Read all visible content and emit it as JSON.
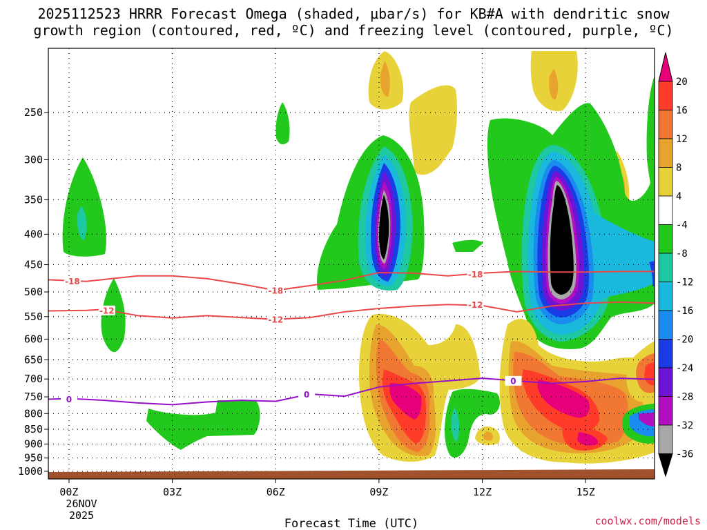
{
  "chart_data": {
    "type": "heatmap",
    "title_line1": "2025112523 HRRR Forecast Omega (shaded, µbar/s) for KB#A with dendritic snow",
    "title_line2": "growth region (contoured, red, ºC) and freezing level (contoured, purple, ºC)",
    "xlabel": "Forecast Time (UTC)",
    "x_ticks": [
      {
        "hour": 0,
        "label": "00Z"
      },
      {
        "hour": 3,
        "label": "03Z"
      },
      {
        "hour": 6,
        "label": "06Z"
      },
      {
        "hour": 9,
        "label": "09Z"
      },
      {
        "hour": 12,
        "label": "12Z"
      },
      {
        "hour": 15,
        "label": "15Z"
      }
    ],
    "x_date_line1": "26NOV",
    "x_date_line2": "2025",
    "xlim": [
      -0.6,
      17.0
    ],
    "ylim_hpa": [
      195,
      1030
    ],
    "y_ticks": [
      250,
      300,
      350,
      400,
      450,
      500,
      550,
      600,
      650,
      700,
      750,
      800,
      850,
      900,
      950,
      1000
    ],
    "colorbar": {
      "labels": [
        "20",
        "16",
        "12",
        "8",
        "4",
        "-4",
        "-8",
        "-12",
        "-16",
        "-20",
        "-24",
        "-28",
        "-32",
        "-36"
      ],
      "colors": [
        "#e8007a",
        "#ff3c2a",
        "#f07832",
        "#e8a22e",
        "#e8d23a",
        "#ffffff",
        "#22c81c",
        "#1ec8a0",
        "#1ab8dc",
        "#1a8cf0",
        "#1a3ce6",
        "#6e14d6",
        "#b010c0",
        "#a8a8a8",
        "#000000"
      ]
    },
    "omega_features": [
      {
        "hour": 0.0,
        "hpa": 390,
        "value": -8,
        "peak": -12
      },
      {
        "hour": 0.6,
        "hpa": 570,
        "value": -8
      },
      {
        "hour": 3.0,
        "hpa": 860,
        "value": -8
      },
      {
        "hour": 5.2,
        "hpa": 830,
        "value": -8
      },
      {
        "hour": 5.9,
        "hpa": 275,
        "value": -8
      },
      {
        "hour": 9.0,
        "hpa": 410,
        "value": -32,
        "peak": -36
      },
      {
        "hour": 9.0,
        "hpa": 230,
        "value": 4,
        "peak": 8
      },
      {
        "hour": 10.0,
        "hpa": 300,
        "value": 4
      },
      {
        "hour": 9.6,
        "hpa": 800,
        "value": 12,
        "peak": 20
      },
      {
        "hour": 11.5,
        "hpa": 830,
        "value": -8,
        "peak": -16
      },
      {
        "hour": 12.0,
        "hpa": 890,
        "value": 4,
        "peak": 16
      },
      {
        "hour": 14.0,
        "hpa": 430,
        "value": -32,
        "peak": -36
      },
      {
        "hour": 13.8,
        "hpa": 220,
        "value": 4,
        "peak": 8
      },
      {
        "hour": 16.0,
        "hpa": 350,
        "value": 4,
        "peak": 8
      },
      {
        "hour": 14.3,
        "hpa": 770,
        "value": 12,
        "peak": 20
      },
      {
        "hour": 15.0,
        "hpa": 910,
        "value": 16,
        "peak": 20
      },
      {
        "hour": 16.8,
        "hpa": 830,
        "value": -16,
        "peak": -28
      },
      {
        "hour": 16.8,
        "hpa": 690,
        "value": 8,
        "peak": 16
      }
    ],
    "contours": [
      {
        "name": "dgz-minus18",
        "label": "-18",
        "color": "#e84848",
        "points": [
          [
            -0.6,
            477
          ],
          [
            0.5,
            480
          ],
          [
            2,
            470
          ],
          [
            3,
            470
          ],
          [
            4,
            475
          ],
          [
            5,
            485
          ],
          [
            6,
            497
          ],
          [
            7,
            488
          ],
          [
            8,
            478
          ],
          [
            9,
            464
          ],
          [
            10,
            465
          ],
          [
            11,
            470
          ],
          [
            12,
            465
          ],
          [
            13,
            462
          ],
          [
            14,
            463
          ],
          [
            15,
            463
          ],
          [
            16,
            462
          ],
          [
            17,
            462
          ]
        ],
        "label_positions": [
          [
            0.1,
            480
          ],
          [
            6,
            497
          ],
          [
            11.8,
            467
          ]
        ]
      },
      {
        "name": "dgz-minus12",
        "label": "-12",
        "color": "#e84848",
        "points": [
          [
            -0.6,
            538
          ],
          [
            0.5,
            537
          ],
          [
            1,
            535
          ],
          [
            2,
            548
          ],
          [
            3,
            553
          ],
          [
            4,
            548
          ],
          [
            5,
            552
          ],
          [
            6,
            556
          ],
          [
            7,
            552
          ],
          [
            8,
            540
          ],
          [
            9,
            533
          ],
          [
            10,
            528
          ],
          [
            11,
            525
          ],
          [
            12,
            527
          ],
          [
            13,
            540
          ],
          [
            14,
            528
          ],
          [
            15,
            522
          ],
          [
            16,
            520
          ],
          [
            17,
            522
          ]
        ],
        "label_positions": [
          [
            1.1,
            537
          ],
          [
            6,
            556
          ],
          [
            11.8,
            525
          ]
        ]
      },
      {
        "name": "freezing-level",
        "label": "0",
        "color": "#9410c8",
        "points": [
          [
            -0.6,
            757
          ],
          [
            0,
            755
          ],
          [
            1,
            760
          ],
          [
            2,
            768
          ],
          [
            3,
            773
          ],
          [
            4,
            765
          ],
          [
            5,
            760
          ],
          [
            6,
            763
          ],
          [
            7,
            742
          ],
          [
            8,
            748
          ],
          [
            9,
            722
          ],
          [
            10,
            712
          ],
          [
            11,
            705
          ],
          [
            12,
            698
          ],
          [
            13,
            705
          ],
          [
            14,
            712
          ],
          [
            15,
            707
          ],
          [
            16,
            698
          ],
          [
            17,
            701
          ]
        ],
        "label_positions": [
          [
            0,
            757
          ],
          [
            6.9,
            743
          ],
          [
            12.9,
            705
          ]
        ]
      }
    ]
  },
  "credit": "coolwx.com/models"
}
